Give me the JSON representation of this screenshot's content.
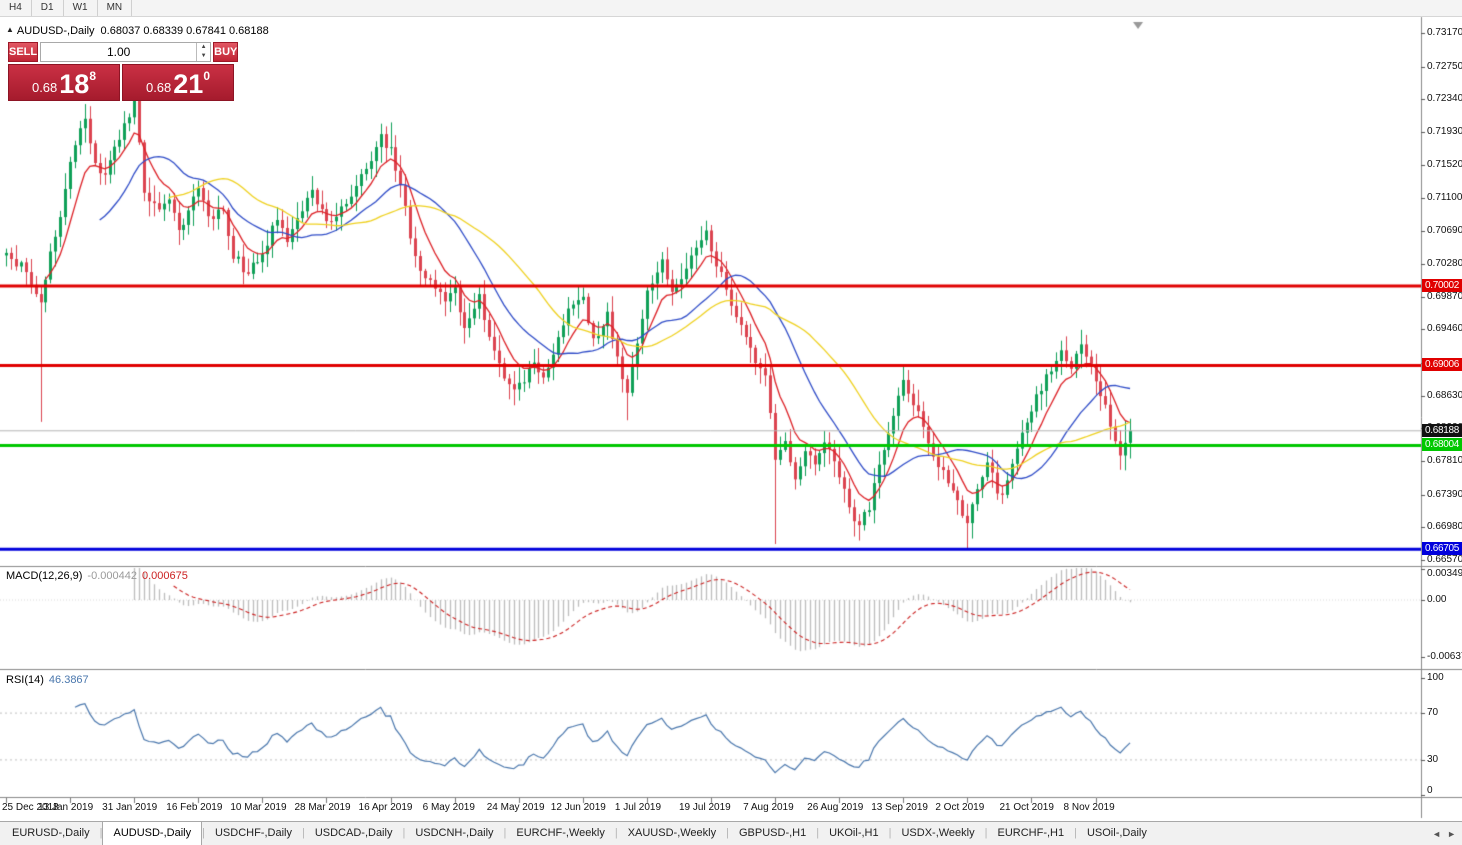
{
  "toolbar": {
    "timeframes": [
      "H4",
      "D1",
      "W1",
      "MN"
    ]
  },
  "chart_header": {
    "collapse_icon": "▲",
    "symbol_title": "AUDUSD-,Daily",
    "ohlc_text": "0.68037 0.68339 0.67841 0.68188"
  },
  "trade_panel": {
    "sell_label": "SELL",
    "buy_label": "BUY",
    "volume": "1.00",
    "vol_up_icon": "▲",
    "vol_down_icon": "▼",
    "sell_price": {
      "base": "0.68",
      "big": "18",
      "sup": "8"
    },
    "buy_price": {
      "base": "0.68",
      "big": "21",
      "sup": "0"
    }
  },
  "indicators": {
    "macd": {
      "name": "MACD(12,26,9)",
      "main_value": "-0.000442",
      "signal_value": "0.000675",
      "axis": [
        "0.00349",
        "0.00",
        "-0.00637"
      ],
      "axis_values": [
        0.00349,
        0,
        -0.00637
      ]
    },
    "rsi": {
      "name": "RSI(14)",
      "value": "46.3867",
      "axis": [
        "100",
        "70",
        "30",
        "0"
      ],
      "axis_values": [
        100,
        70,
        30,
        0
      ],
      "levels": [
        70,
        30
      ]
    }
  },
  "tabbar": {
    "scroll_left": "◄",
    "scroll_right": "►",
    "tabs": [
      {
        "label": "EURUSD-,Daily",
        "active": false
      },
      {
        "label": "AUDUSD-,Daily",
        "active": true
      },
      {
        "label": "USDCHF-,Daily",
        "active": false
      },
      {
        "label": "USDCAD-,Daily",
        "active": false
      },
      {
        "label": "USDCNH-,Daily",
        "active": false
      },
      {
        "label": "EURCHF-,Weekly",
        "active": false
      },
      {
        "label": "XAUUSD-,Weekly",
        "active": false
      },
      {
        "label": "GBPUSD-,H1",
        "active": false
      },
      {
        "label": "UKOil-,H1",
        "active": false
      },
      {
        "label": "USDX-,Weekly",
        "active": false
      },
      {
        "label": "EURCHF-,H1",
        "active": false
      },
      {
        "label": "USOil-,Daily",
        "active": false
      }
    ]
  },
  "chart_data": {
    "type": "candlestick",
    "title": "AUDUSD-,Daily",
    "symbol": "AUDUSD",
    "period": "Daily",
    "current": {
      "open": 0.68037,
      "high": 0.68339,
      "low": 0.67841,
      "close": 0.68188
    },
    "y_axis": {
      "min": 0.6657,
      "max": 0.7317,
      "ticks": [
        "0.73170",
        "0.72750",
        "0.72340",
        "0.71930",
        "0.71520",
        "0.71100",
        "0.70690",
        "0.70280",
        "0.69870",
        "0.69460",
        "0.69040",
        "0.68630",
        "0.68220",
        "0.67810",
        "0.67390",
        "0.66980",
        "0.66570"
      ]
    },
    "x_axis": {
      "candles_per_label": 13,
      "labels": [
        "25 Dec 2018",
        "13 Jan 2019",
        "31 Jan 2019",
        "16 Feb 2019",
        "10 Mar 2019",
        "28 Mar 2019",
        "16 Apr 2019",
        "6 May 2019",
        "24 May 2019",
        "12 Jun 2019",
        "1 Jul 2019",
        "19 Jul 2019",
        "7 Aug 2019",
        "26 Aug 2019",
        "13 Sep 2019",
        "2 Oct 2019",
        "21 Oct 2019",
        "8 Nov 2019"
      ]
    },
    "candle_count": 229,
    "noise_seed": 9,
    "close_waypoints": [
      [
        0,
        0.704
      ],
      [
        3,
        0.7025
      ],
      [
        6,
        0.699
      ],
      [
        7,
        0.6985
      ],
      [
        9,
        0.704
      ],
      [
        11,
        0.709
      ],
      [
        13,
        0.715
      ],
      [
        15,
        0.7195
      ],
      [
        16,
        0.7215
      ],
      [
        18,
        0.715
      ],
      [
        20,
        0.7135
      ],
      [
        23,
        0.7185
      ],
      [
        26,
        0.7228
      ],
      [
        28,
        0.712
      ],
      [
        31,
        0.709
      ],
      [
        33,
        0.711
      ],
      [
        35,
        0.7065
      ],
      [
        37,
        0.7095
      ],
      [
        39,
        0.7125
      ],
      [
        41,
        0.7085
      ],
      [
        44,
        0.7095
      ],
      [
        46,
        0.704
      ],
      [
        49,
        0.7015
      ],
      [
        52,
        0.704
      ],
      [
        55,
        0.7085
      ],
      [
        57,
        0.706
      ],
      [
        60,
        0.7095
      ],
      [
        62,
        0.712
      ],
      [
        65,
        0.7075
      ],
      [
        68,
        0.7095
      ],
      [
        71,
        0.7125
      ],
      [
        74,
        0.7155
      ],
      [
        76,
        0.7185
      ],
      [
        78,
        0.717
      ],
      [
        80,
        0.713
      ],
      [
        82,
        0.706
      ],
      [
        84,
        0.7015
      ],
      [
        87,
        0.7
      ],
      [
        89,
        0.6985
      ],
      [
        91,
        0.7
      ],
      [
        93,
        0.6945
      ],
      [
        96,
        0.6985
      ],
      [
        98,
        0.6935
      ],
      [
        101,
        0.689
      ],
      [
        103,
        0.6865
      ],
      [
        105,
        0.6885
      ],
      [
        107,
        0.6905
      ],
      [
        109,
        0.688
      ],
      [
        112,
        0.693
      ],
      [
        114,
        0.697
      ],
      [
        117,
        0.6985
      ],
      [
        119,
        0.693
      ],
      [
        122,
        0.6965
      ],
      [
        124,
        0.6915
      ],
      [
        126,
        0.6865
      ],
      [
        128,
        0.6925
      ],
      [
        130,
        0.6995
      ],
      [
        133,
        0.703
      ],
      [
        135,
        0.6995
      ],
      [
        137,
        0.701
      ],
      [
        139,
        0.704
      ],
      [
        142,
        0.7065
      ],
      [
        144,
        0.703
      ],
      [
        146,
        0.6995
      ],
      [
        148,
        0.696
      ],
      [
        150,
        0.693
      ],
      [
        152,
        0.6905
      ],
      [
        154,
        0.6885
      ],
      [
        155,
        0.684
      ],
      [
        156,
        0.6785
      ],
      [
        158,
        0.68
      ],
      [
        160,
        0.676
      ],
      [
        162,
        0.679
      ],
      [
        164,
        0.6775
      ],
      [
        166,
        0.68
      ],
      [
        168,
        0.678
      ],
      [
        170,
        0.6745
      ],
      [
        171,
        0.672
      ],
      [
        173,
        0.67
      ],
      [
        175,
        0.6725
      ],
      [
        177,
        0.677
      ],
      [
        179,
        0.6815
      ],
      [
        181,
        0.6865
      ],
      [
        182,
        0.688
      ],
      [
        184,
        0.6855
      ],
      [
        186,
        0.6825
      ],
      [
        188,
        0.6785
      ],
      [
        190,
        0.6765
      ],
      [
        192,
        0.675
      ],
      [
        194,
        0.6715
      ],
      [
        195,
        0.67
      ],
      [
        197,
        0.6745
      ],
      [
        199,
        0.6775
      ],
      [
        201,
        0.6745
      ],
      [
        202,
        0.6735
      ],
      [
        204,
        0.6775
      ],
      [
        206,
        0.681
      ],
      [
        208,
        0.6845
      ],
      [
        210,
        0.6875
      ],
      [
        212,
        0.6895
      ],
      [
        214,
        0.6915
      ],
      [
        216,
        0.69
      ],
      [
        218,
        0.6925
      ],
      [
        220,
        0.6905
      ],
      [
        221,
        0.688
      ],
      [
        223,
        0.685
      ],
      [
        225,
        0.68
      ],
      [
        226,
        0.6785
      ],
      [
        227,
        0.681
      ],
      [
        228,
        0.68188
      ]
    ],
    "wick_lows": [
      [
        7,
        0.683
      ],
      [
        126,
        0.6832
      ],
      [
        156,
        0.6677
      ],
      [
        173,
        0.6689
      ],
      [
        195,
        0.667
      ],
      [
        226,
        0.677
      ]
    ],
    "wick_highs": [
      [
        16,
        0.7228
      ],
      [
        26,
        0.724
      ],
      [
        78,
        0.7205
      ],
      [
        142,
        0.7082
      ],
      [
        218,
        0.6929
      ]
    ],
    "hlines": [
      {
        "label": "0.70002",
        "price": 0.70002,
        "color": "#e00000",
        "width": 3
      },
      {
        "label": "0.69006",
        "price": 0.69006,
        "color": "#e00000",
        "width": 3
      },
      {
        "label": "0.68004",
        "price": 0.68004,
        "color": "#00c800",
        "width": 3
      },
      {
        "label": "0.66705",
        "price": 0.66705,
        "color": "#0000dc",
        "width": 3
      }
    ],
    "current_price_line": {
      "label": "0.68188",
      "price": 0.68188,
      "line_color": "#b4b4b4",
      "badge_color": "#111111"
    },
    "moving_averages": [
      {
        "period": 8,
        "type": "ema",
        "color": "#dd2026"
      },
      {
        "period": 20,
        "type": "sma",
        "color": "#2f4cc8"
      },
      {
        "period": 34,
        "type": "sma",
        "color": "#efd11f"
      }
    ],
    "colors": {
      "up": "#0fa058",
      "down": "#dc4450",
      "macd_hist": "#bdbdbd",
      "macd_signal": "#cc2222",
      "rsi": "#4a77ad",
      "background": "#ffffff",
      "panel_border": "#888888"
    }
  }
}
